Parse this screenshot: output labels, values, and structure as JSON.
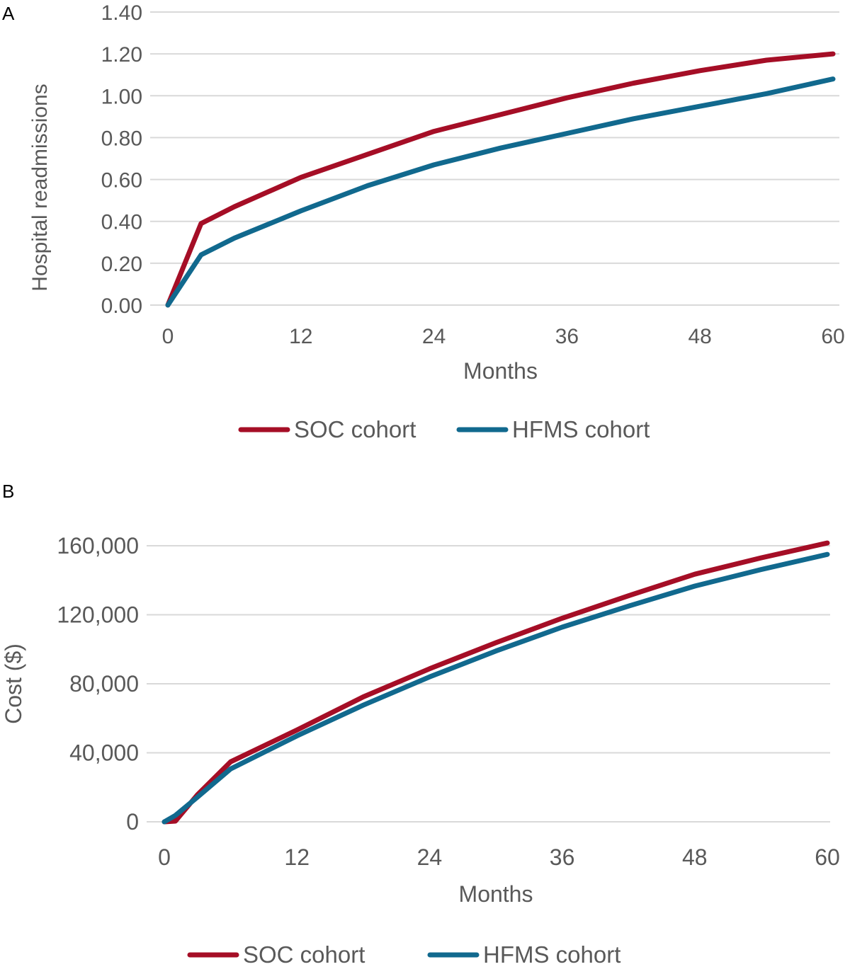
{
  "colors": {
    "soc": "#A50E26",
    "hfms": "#11698E",
    "grid": "#D9D9D9",
    "text": "#595959"
  },
  "chart_data": [
    {
      "panel_label": "A",
      "type": "line",
      "xlabel": "Months",
      "ylabel": "Hospital readmissions",
      "xlim": [
        0,
        60
      ],
      "ylim": [
        0,
        1.4
      ],
      "x_ticks": [
        "0",
        "12",
        "24",
        "36",
        "48",
        "60"
      ],
      "y_ticks": [
        "0.00",
        "0.20",
        "0.40",
        "0.60",
        "0.80",
        "1.00",
        "1.20",
        "1.40"
      ],
      "grid": "horizontal",
      "legend": "bottom",
      "x": [
        0,
        3,
        6,
        12,
        18,
        24,
        30,
        36,
        42,
        48,
        54,
        60
      ],
      "series": [
        {
          "name": "SOC cohort",
          "values": [
            0,
            0.39,
            0.47,
            0.61,
            0.72,
            0.83,
            0.91,
            0.99,
            1.06,
            1.12,
            1.17,
            1.2
          ]
        },
        {
          "name": "HFMS cohort",
          "values": [
            0,
            0.24,
            0.32,
            0.45,
            0.57,
            0.67,
            0.75,
            0.82,
            0.89,
            0.95,
            1.01,
            1.08
          ]
        }
      ]
    },
    {
      "panel_label": "B",
      "type": "line",
      "xlabel": "Months",
      "ylabel": "Cost ($)",
      "xlim": [
        0,
        60
      ],
      "ylim": [
        0,
        160000
      ],
      "x_ticks": [
        "0",
        "12",
        "24",
        "36",
        "48",
        "60"
      ],
      "y_ticks": [
        "0",
        "40,000",
        "80,000",
        "120,000",
        "160,000"
      ],
      "grid": "horizontal",
      "legend": "bottom",
      "x": [
        0,
        1,
        3,
        6,
        12,
        18,
        24,
        30,
        36,
        42,
        48,
        54,
        60
      ],
      "series": [
        {
          "name": "SOC cohort",
          "values": [
            0,
            400,
            15700,
            34800,
            53200,
            72400,
            88700,
            103800,
            118000,
            131000,
            143500,
            153000,
            161600
          ]
        },
        {
          "name": "HFMS cohort",
          "values": [
            0,
            3700,
            14300,
            30700,
            49800,
            67600,
            84000,
            99000,
            112800,
            125000,
            136600,
            146200,
            155000
          ]
        }
      ]
    }
  ]
}
